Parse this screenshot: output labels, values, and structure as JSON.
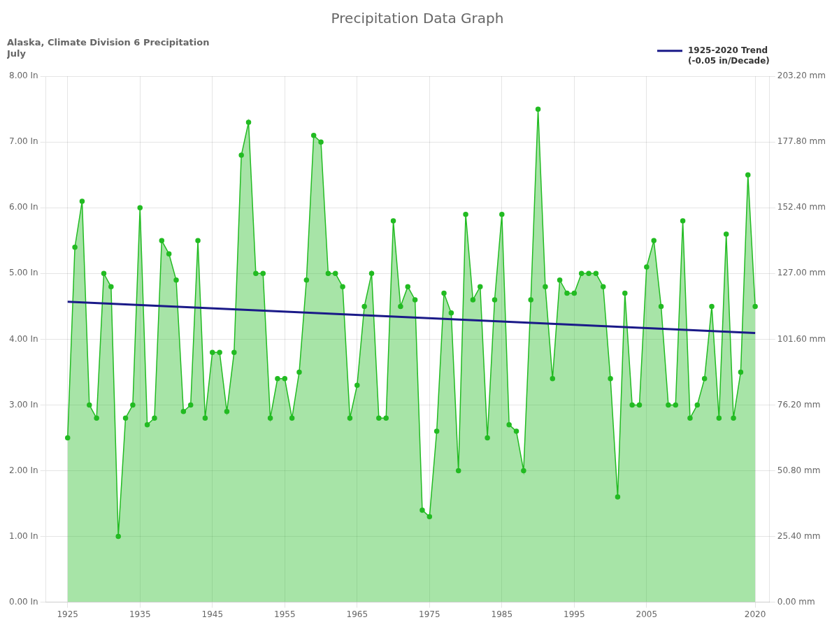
{
  "chart_data": {
    "type": "line",
    "title": "Precipitation Data Graph",
    "subtitle": [
      "Alaska, Climate Division 6 Precipitation",
      "July"
    ],
    "series": [
      {
        "type": "area",
        "color": "#22bb22",
        "marker": "circle",
        "line_style": "solid",
        "x": [
          1925,
          1926,
          1927,
          1928,
          1929,
          1930,
          1931,
          1932,
          1933,
          1934,
          1935,
          1936,
          1937,
          1938,
          1939,
          1940,
          1941,
          1942,
          1943,
          1944,
          1945,
          1946,
          1947,
          1948,
          1949,
          1950,
          1951,
          1952,
          1953,
          1954,
          1955,
          1956,
          1957,
          1958,
          1959,
          1960,
          1961,
          1962,
          1963,
          1964,
          1965,
          1966,
          1967,
          1968,
          1969,
          1970,
          1971,
          1972,
          1973,
          1974,
          1975,
          1976,
          1977,
          1978,
          1979,
          1980,
          1981,
          1982,
          1983,
          1984,
          1985,
          1986,
          1987,
          1988,
          1989,
          1990,
          1991,
          1992,
          1993,
          1994,
          1995,
          1996,
          1997,
          1998,
          1999,
          2000,
          2001,
          2002,
          2003,
          2004,
          2005,
          2006,
          2007,
          2008,
          2009,
          2010,
          2011,
          2012,
          2013,
          2014,
          2015,
          2016,
          2017,
          2018,
          2019,
          2020
        ],
        "values": [
          2.5,
          5.4,
          6.1,
          3.0,
          2.8,
          5.0,
          4.8,
          1.0,
          2.8,
          3.0,
          6.0,
          2.7,
          2.8,
          5.5,
          5.3,
          4.9,
          2.9,
          3.0,
          5.5,
          2.8,
          3.8,
          3.8,
          2.9,
          3.8,
          6.8,
          7.3,
          5.0,
          5.0,
          2.8,
          3.4,
          3.4,
          2.8,
          3.5,
          4.9,
          7.1,
          7.0,
          5.0,
          5.0,
          4.8,
          2.8,
          3.3,
          4.5,
          5.0,
          2.8,
          2.8,
          5.8,
          4.5,
          4.8,
          4.6,
          1.4,
          1.3,
          2.6,
          4.7,
          4.4,
          2.0,
          5.9,
          4.6,
          4.8,
          2.5,
          4.6,
          5.9,
          2.7,
          2.6,
          2.0,
          4.6,
          7.5,
          4.8,
          3.4,
          4.9,
          4.7,
          4.7,
          5.0,
          5.0,
          5.0,
          4.8,
          3.4,
          1.6,
          4.7,
          3.0,
          3.0,
          5.1,
          5.5,
          4.5,
          3.0,
          3.0,
          5.8,
          2.8,
          3.0,
          3.4,
          4.5,
          2.8,
          5.6,
          2.8,
          3.5,
          6.5,
          4.5
        ]
      },
      {
        "type": "line",
        "name": "1925-2020 Trend\n(-0.05 in/Decade)",
        "color": "#1a1a88",
        "line_style": "solid",
        "x": [
          1925,
          2020
        ],
        "values": [
          4.57,
          4.095
        ]
      }
    ],
    "xlim": [
      1922,
      2022
    ],
    "xticks": [
      1925,
      1935,
      1945,
      1955,
      1965,
      1975,
      1985,
      1995,
      2005,
      2020
    ],
    "ylim": [
      0.0,
      8.0
    ],
    "yticks": [
      {
        "value": 0.0,
        "label": "0.00 In"
      },
      {
        "value": 1.0,
        "label": "1.00 In"
      },
      {
        "value": 2.0,
        "label": "2.00 In"
      },
      {
        "value": 3.0,
        "label": "3.00 In"
      },
      {
        "value": 4.0,
        "label": "4.00 In"
      },
      {
        "value": 5.0,
        "label": "5.00 In"
      },
      {
        "value": 6.0,
        "label": "6.00 In"
      },
      {
        "value": 7.0,
        "label": "7.00 In"
      },
      {
        "value": 8.0,
        "label": "8.00 In"
      }
    ],
    "y2lim": [
      0.0,
      8.0
    ],
    "y2ticks": [
      {
        "value": 0.0,
        "label": "0.00 mm"
      },
      {
        "value": 1.0,
        "label": "25.40 mm"
      },
      {
        "value": 2.0,
        "label": "50.80 mm"
      },
      {
        "value": 3.0,
        "label": "76.20 mm"
      },
      {
        "value": 4.0,
        "label": "101.60 mm"
      },
      {
        "value": 5.0,
        "label": "127.00 mm"
      },
      {
        "value": 6.0,
        "label": "152.40 mm"
      },
      {
        "value": 7.0,
        "label": "177.80 mm"
      },
      {
        "value": 8.0,
        "label": "203.20 mm"
      }
    ],
    "grid": true,
    "legend": "upper right"
  }
}
